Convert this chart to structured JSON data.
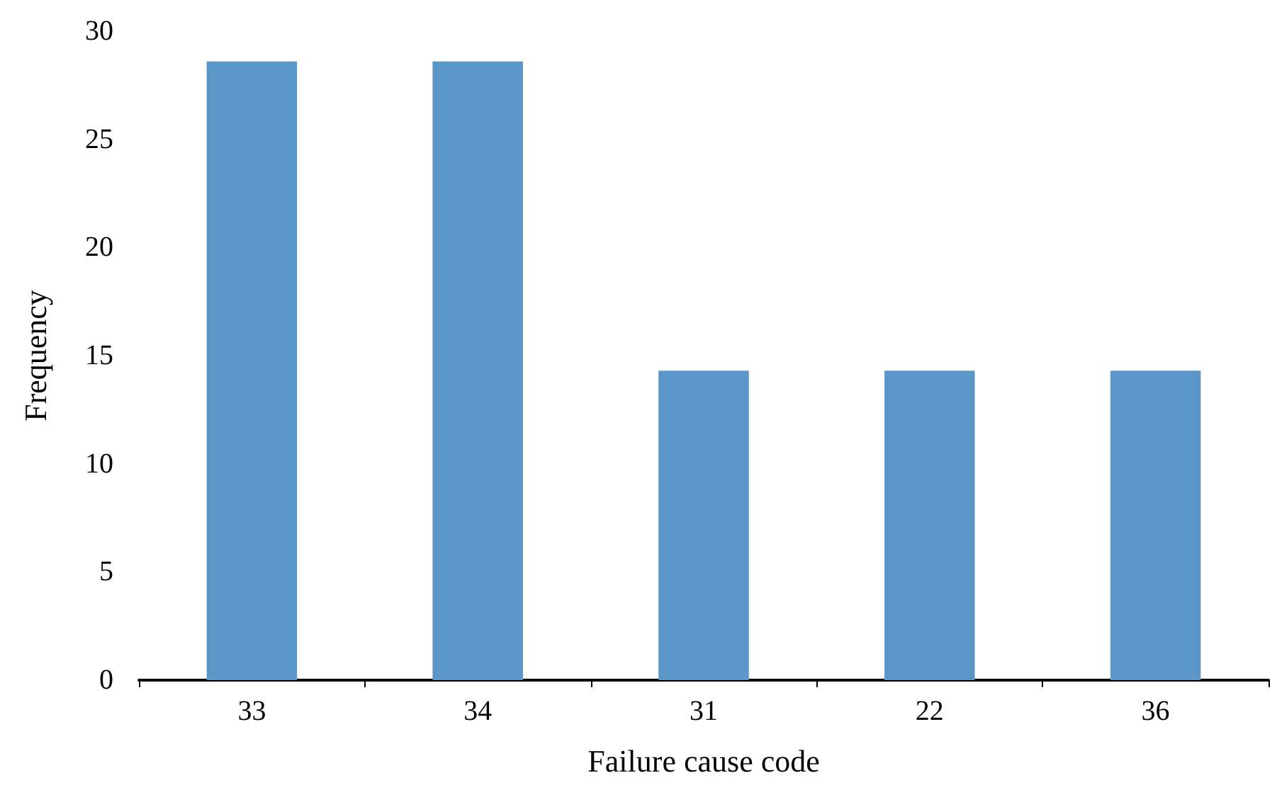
{
  "chart_data": {
    "type": "bar",
    "xlabel": "Failure cause code",
    "ylabel": "Frequency",
    "categories": [
      "33",
      "34",
      "31",
      "22",
      "36"
    ],
    "values": [
      28.6,
      28.6,
      14.3,
      14.3,
      14.3
    ],
    "color": "#5b96c9",
    "ylim": [
      0,
      30
    ],
    "yticks": [
      0,
      5,
      10,
      15,
      20,
      25,
      30
    ],
    "grid": false
  }
}
